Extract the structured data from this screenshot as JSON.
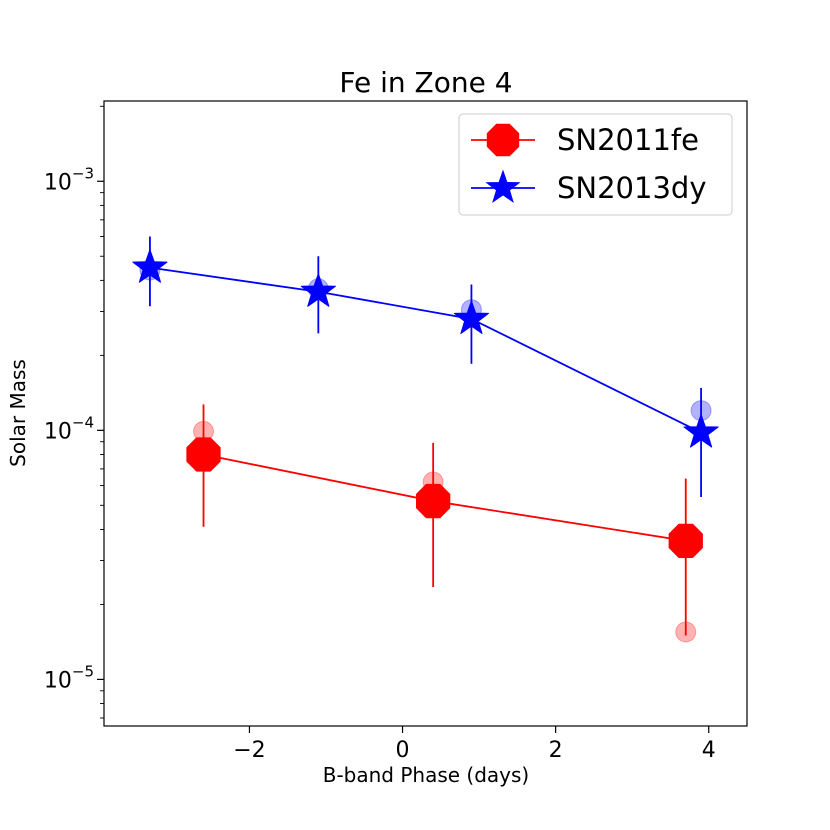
{
  "chart_data": {
    "type": "scatter",
    "title": "Fe in Zone 4",
    "xlabel": "B-band Phase (days)",
    "ylabel": "Solar Mass",
    "yscale": "log",
    "xlim": [
      -3.9,
      4.5
    ],
    "ylim": [
      6.5e-06,
      0.0021
    ],
    "x_ticks": [
      {
        "value": -2,
        "label": "−2"
      },
      {
        "value": 0,
        "label": "0"
      },
      {
        "value": 2,
        "label": "2"
      },
      {
        "value": 4,
        "label": "4"
      }
    ],
    "y_ticks": [
      {
        "value": 1e-05,
        "base": "10",
        "exp": "−5"
      },
      {
        "value": 0.0001,
        "base": "10",
        "exp": "−4"
      },
      {
        "value": 0.001,
        "base": "10",
        "exp": "−3"
      }
    ],
    "legend_position": "top-right",
    "series": [
      {
        "name": "SN2011fe",
        "color": "#ff0000",
        "marker": "octagon",
        "x": [
          -2.6,
          0.4,
          3.7
        ],
        "y": [
          8e-05,
          5.2e-05,
          3.6e-05
        ],
        "err_low": [
          4.1e-05,
          2.35e-05,
          1.5e-05
        ],
        "err_high": [
          0.000127,
          8.9e-05,
          6.4e-05
        ],
        "faded_points": {
          "x": [
            -2.6,
            0.4,
            3.7
          ],
          "y": [
            9.9e-05,
            6.2e-05,
            1.55e-05
          ]
        }
      },
      {
        "name": "SN2013dy",
        "color": "#0000ff",
        "marker": "star",
        "x": [
          -3.3,
          -1.1,
          0.9,
          3.9
        ],
        "y": [
          0.00045,
          0.00036,
          0.00028,
          9.8e-05
        ],
        "err_low": [
          0.000315,
          0.000245,
          0.000185,
          5.4e-05
        ],
        "err_high": [
          0.0006,
          0.0005,
          0.000385,
          0.000148
        ],
        "faded_points": {
          "x": [
            -3.3,
            -1.1,
            0.9,
            3.9
          ],
          "y": [
            0.00044,
            0.00037,
            0.000305,
            0.00012
          ]
        }
      }
    ]
  }
}
